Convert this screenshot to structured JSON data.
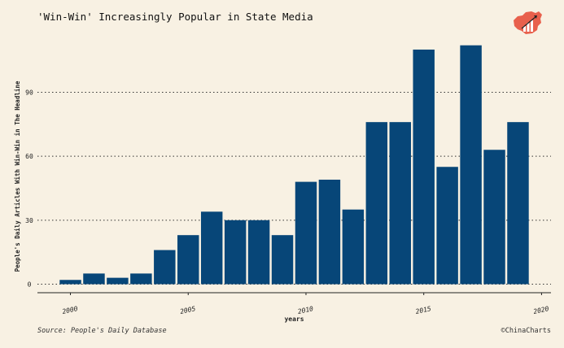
{
  "title": "'Win-Win' Increasingly Popular in State Media",
  "source": "Source: People's Daily Database",
  "credit": "©ChinaCharts",
  "logo_icon": "china-map-bar-chart-icon",
  "colors": {
    "background": "#f8f1e3",
    "bar": "#074678",
    "logo": "#e8604c",
    "grid": "#333333"
  },
  "chart_data": {
    "type": "bar",
    "title": "'Win-Win' Increasingly Popular in State Media",
    "xlabel": "years",
    "ylabel": "People's Daily Articles With Win-Win in The Headline",
    "x": [
      2000,
      2001,
      2002,
      2003,
      2004,
      2005,
      2006,
      2007,
      2008,
      2009,
      2010,
      2011,
      2012,
      2013,
      2014,
      2015,
      2016,
      2017,
      2018,
      2019
    ],
    "values": [
      2,
      5,
      3,
      5,
      16,
      23,
      34,
      30,
      30,
      23,
      48,
      49,
      35,
      76,
      76,
      110,
      55,
      112,
      63,
      76
    ],
    "xticks": [
      "2000",
      "2005",
      "2010",
      "2015",
      "2020"
    ],
    "yticks": [
      "0",
      "30",
      "60",
      "90"
    ],
    "xlim": [
      1998.6,
      2020.4
    ],
    "ylim": [
      -4,
      118
    ],
    "grid": "horizontal dotted"
  }
}
